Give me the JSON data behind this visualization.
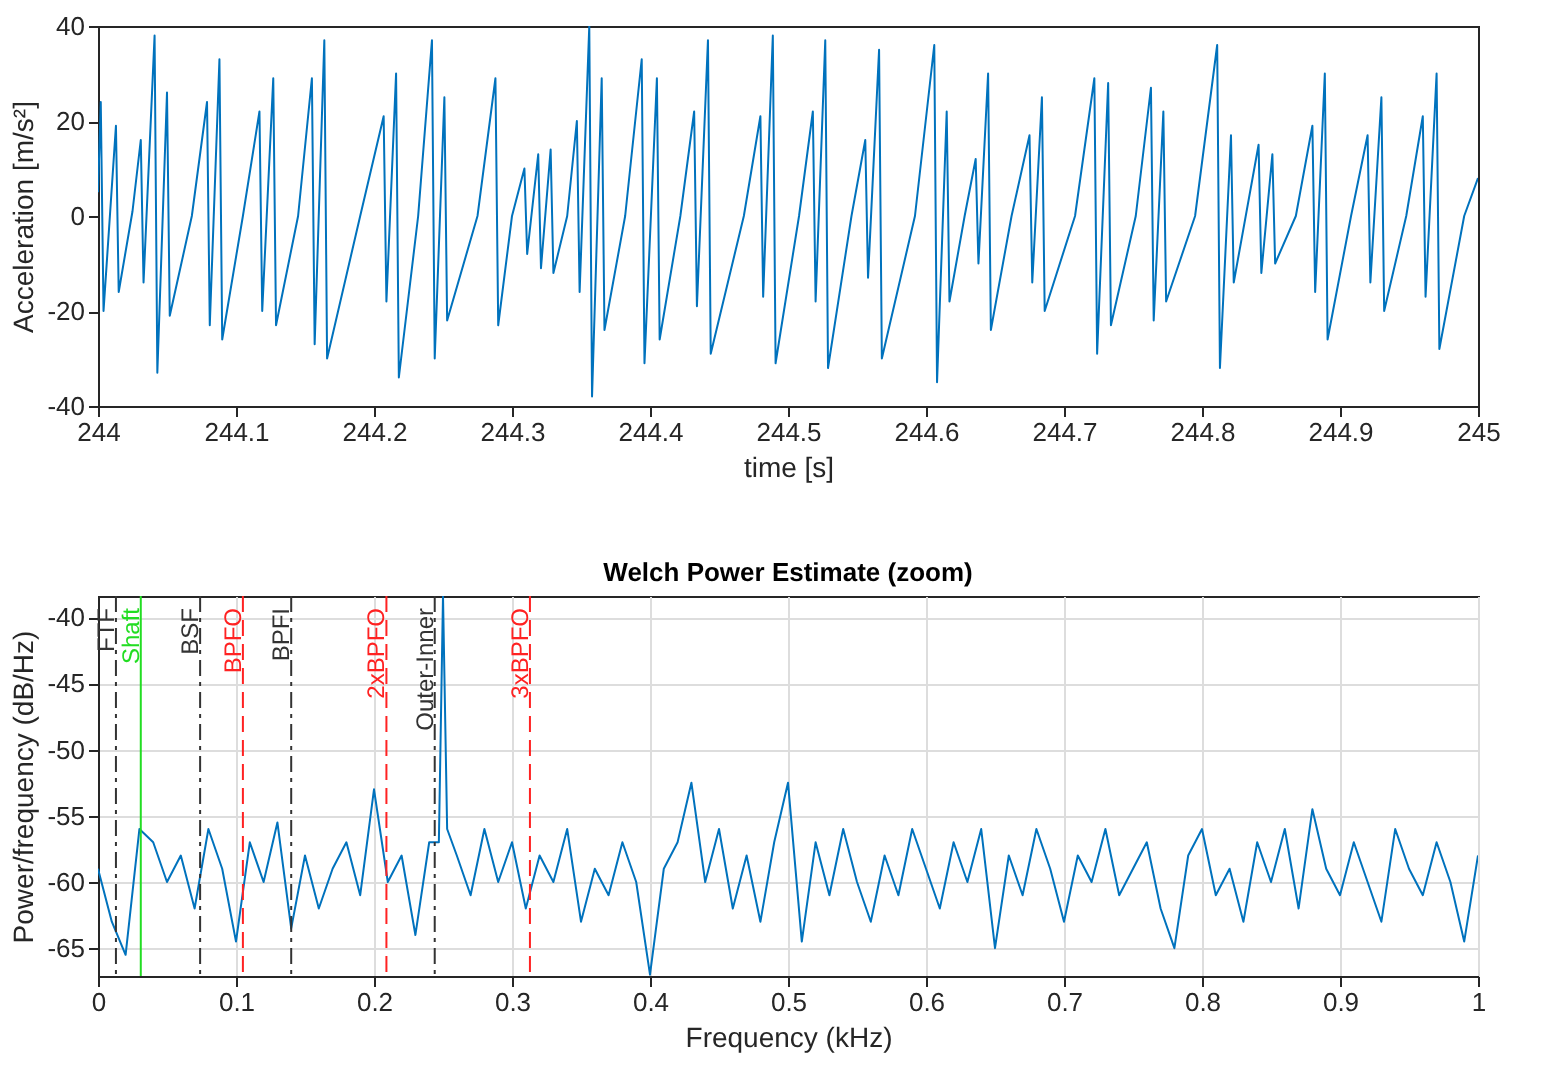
{
  "chart_data": [
    {
      "type": "line",
      "xlabel": "time [s]",
      "ylabel": "Acceleration [m/s²]",
      "xlim": [
        244,
        245
      ],
      "xticks": [
        244,
        244.1,
        244.2,
        244.3,
        244.4,
        244.5,
        244.6,
        244.7,
        244.8,
        244.9,
        245
      ],
      "ylim": [
        -40,
        40
      ],
      "yticks": [
        -40,
        -20,
        0,
        20,
        40
      ],
      "grid": false,
      "legend": false,
      "x": [
        244.0,
        244.002,
        244.004,
        244.013,
        244.015,
        244.025,
        244.031,
        244.033,
        244.041,
        244.043,
        244.05,
        244.052,
        244.068,
        244.079,
        244.081,
        244.088,
        244.09,
        244.105,
        244.117,
        244.119,
        244.127,
        244.129,
        244.145,
        244.155,
        244.157,
        244.164,
        244.166,
        244.19,
        244.207,
        244.209,
        244.216,
        244.218,
        244.232,
        244.242,
        244.244,
        244.251,
        244.253,
        244.275,
        244.288,
        244.29,
        244.3,
        244.309,
        244.311,
        244.319,
        244.321,
        244.328,
        244.33,
        244.34,
        244.347,
        244.349,
        244.356,
        244.358,
        244.365,
        244.367,
        244.382,
        244.394,
        244.396,
        244.405,
        244.407,
        244.422,
        244.432,
        244.434,
        244.442,
        244.444,
        244.468,
        244.48,
        244.482,
        244.489,
        244.491,
        244.508,
        244.518,
        244.52,
        244.527,
        244.529,
        244.546,
        244.556,
        244.558,
        244.566,
        244.568,
        244.592,
        244.606,
        244.608,
        244.615,
        244.617,
        244.628,
        244.636,
        244.638,
        244.645,
        244.647,
        244.662,
        244.675,
        244.677,
        244.684,
        244.686,
        244.708,
        244.722,
        244.724,
        244.732,
        244.734,
        244.752,
        244.763,
        244.765,
        244.772,
        244.774,
        244.795,
        244.811,
        244.813,
        244.821,
        244.823,
        244.841,
        244.843,
        244.851,
        244.853,
        244.868,
        244.88,
        244.882,
        244.889,
        244.891,
        244.908,
        244.92,
        244.922,
        244.93,
        244.932,
        244.948,
        244.96,
        244.962,
        244.97,
        244.972,
        244.99,
        245.0
      ],
      "series": [
        {
          "color": "#0072bd",
          "values": [
            5,
            24,
            -20,
            19,
            -16,
            1,
            16,
            -14,
            38,
            -33,
            26,
            -21,
            0,
            24,
            -23,
            33,
            -26,
            0,
            22,
            -20,
            29,
            -23,
            0,
            29,
            -27,
            37,
            -30,
            0,
            21,
            -18,
            30,
            -34,
            0,
            37,
            -30,
            25,
            -22,
            0,
            29,
            -23,
            0,
            10,
            -8,
            13,
            -11,
            14,
            -12,
            0,
            20,
            -16,
            40,
            -38,
            29,
            -24,
            0,
            33,
            -31,
            29,
            -26,
            0,
            22,
            -19,
            37,
            -29,
            0,
            21,
            -17,
            38,
            -31,
            0,
            22,
            -18,
            37,
            -32,
            0,
            16,
            -13,
            35,
            -30,
            0,
            36,
            -35,
            22,
            -18,
            0,
            12,
            -10,
            30,
            -24,
            0,
            17,
            -14,
            25,
            -20,
            0,
            29,
            -29,
            28,
            -23,
            0,
            27,
            -22,
            22,
            -18,
            0,
            36,
            -32,
            17,
            -14,
            15,
            -12,
            13,
            -10,
            0,
            19,
            -16,
            30,
            -26,
            0,
            17,
            -14,
            25,
            -20,
            0,
            21,
            -17,
            30,
            -28,
            0,
            8
          ]
        }
      ]
    },
    {
      "type": "line",
      "title": "Welch Power Estimate (zoom)",
      "xlabel": "Frequency (kHz)",
      "ylabel": "Power/frequency (dB/Hz)",
      "xlim": [
        0,
        1
      ],
      "xticks": [
        0,
        0.1,
        0.2,
        0.3,
        0.4,
        0.5,
        0.6,
        0.7,
        0.8,
        0.9,
        1
      ],
      "ylim": [
        -67.1,
        -38.4
      ],
      "yticks": [
        -65,
        -60,
        -55,
        -50,
        -45,
        -40
      ],
      "grid": true,
      "legend": false,
      "x": [
        0,
        0.01,
        0.02,
        0.03,
        0.04,
        0.05,
        0.06,
        0.07,
        0.08,
        0.09,
        0.1,
        0.11,
        0.12,
        0.13,
        0.14,
        0.15,
        0.16,
        0.17,
        0.18,
        0.19,
        0.2,
        0.21,
        0.22,
        0.23,
        0.24,
        0.247,
        0.25,
        0.253,
        0.26,
        0.27,
        0.28,
        0.29,
        0.3,
        0.31,
        0.32,
        0.33,
        0.34,
        0.35,
        0.36,
        0.37,
        0.38,
        0.39,
        0.4,
        0.41,
        0.42,
        0.43,
        0.44,
        0.45,
        0.46,
        0.47,
        0.48,
        0.49,
        0.5,
        0.51,
        0.52,
        0.53,
        0.54,
        0.55,
        0.56,
        0.57,
        0.58,
        0.59,
        0.6,
        0.61,
        0.62,
        0.63,
        0.64,
        0.65,
        0.66,
        0.67,
        0.68,
        0.69,
        0.7,
        0.71,
        0.72,
        0.73,
        0.74,
        0.75,
        0.76,
        0.77,
        0.78,
        0.79,
        0.8,
        0.81,
        0.82,
        0.83,
        0.84,
        0.85,
        0.86,
        0.87,
        0.88,
        0.89,
        0.9,
        0.91,
        0.92,
        0.93,
        0.94,
        0.95,
        0.96,
        0.97,
        0.98,
        0.99,
        1
      ],
      "series": [
        {
          "color": "#0072bd",
          "values": [
            -59,
            -63,
            -65.5,
            -56,
            -57,
            -60,
            -58,
            -62,
            -56,
            -59,
            -64.5,
            -57,
            -60,
            -55.5,
            -63.5,
            -58,
            -62,
            -59,
            -57,
            -61,
            -53,
            -60,
            -58,
            -64,
            -57,
            -57,
            -38.4,
            -56,
            -58,
            -61,
            -56,
            -60,
            -57,
            -62,
            -58,
            -60,
            -56,
            -63,
            -59,
            -61,
            -57,
            -60,
            -67,
            -59,
            -57,
            -52.5,
            -60,
            -56,
            -62,
            -58,
            -63,
            -57,
            -52.5,
            -64.5,
            -57,
            -61,
            -56,
            -60,
            -63,
            -58,
            -61,
            -56,
            -59,
            -62,
            -57,
            -60,
            -56,
            -65,
            -58,
            -61,
            -56,
            -59,
            -63,
            -58,
            -60,
            -56,
            -61,
            -59,
            -57,
            -62,
            -65,
            -58,
            -56,
            -61,
            -59,
            -63,
            -57,
            -60,
            -56,
            -62,
            -54.5,
            -59,
            -61,
            -57,
            -60,
            -63,
            -56,
            -59,
            -61,
            -57,
            -60,
            -64.5,
            -58
          ]
        }
      ],
      "ref_lines": [
        {
          "axis": "x",
          "value": 0.013,
          "label": "FTF",
          "color": "#333333",
          "line_style": "dashdot"
        },
        {
          "axis": "x",
          "value": 0.031,
          "label": "Shaft",
          "color": "#22dd22",
          "line_style": "solid"
        },
        {
          "axis": "x",
          "value": 0.074,
          "label": "BSF",
          "color": "#333333",
          "line_style": "dashdot"
        },
        {
          "axis": "x",
          "value": 0.105,
          "label": "BPFO",
          "color": "#ff2222",
          "line_style": "dashed"
        },
        {
          "axis": "x",
          "value": 0.14,
          "label": "BPFI",
          "color": "#333333",
          "line_style": "dashdot"
        },
        {
          "axis": "x",
          "value": 0.209,
          "label": "2xBPFO",
          "color": "#ff2222",
          "line_style": "dashed"
        },
        {
          "axis": "x",
          "value": 0.244,
          "label": "Outer-Inner",
          "color": "#333333",
          "line_style": "dashdot"
        },
        {
          "axis": "x",
          "value": 0.313,
          "label": "3xBPFO",
          "color": "#ff2222",
          "line_style": "dashed"
        }
      ]
    }
  ]
}
